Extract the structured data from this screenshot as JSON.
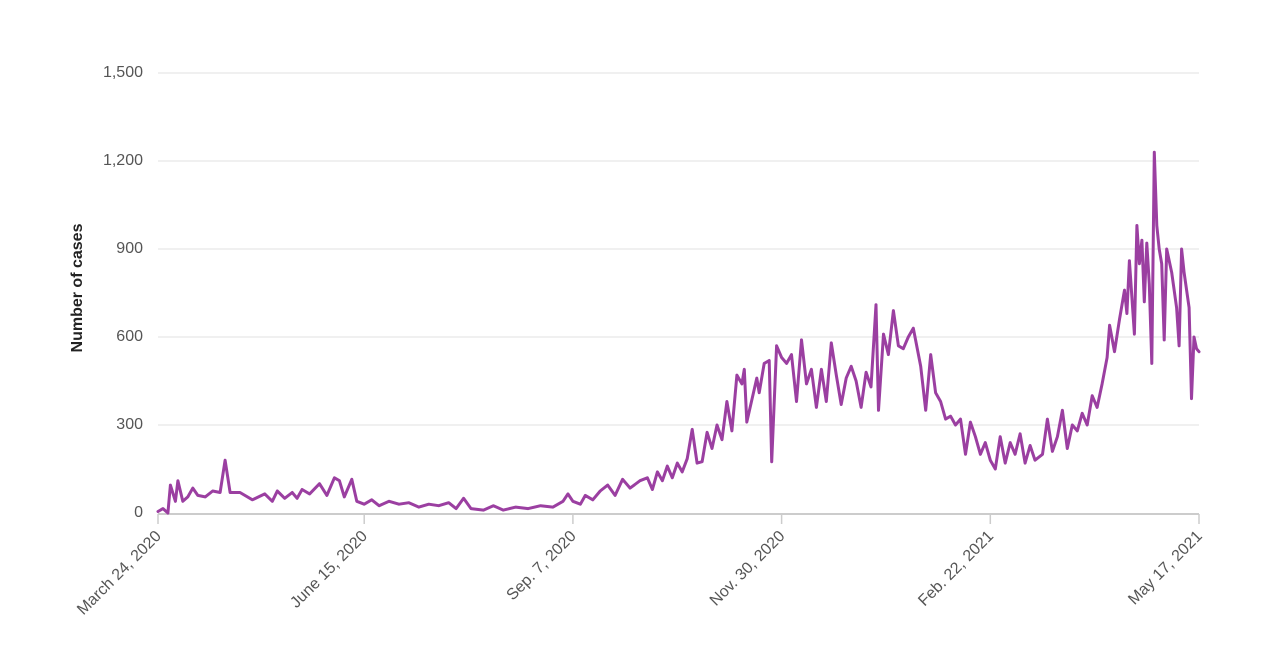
{
  "chart_data": {
    "type": "line",
    "title": "",
    "xlabel": "",
    "ylabel": "Number of cases",
    "ylim": [
      0,
      1500
    ],
    "x_range": [
      "2020-03-24",
      "2021-05-17"
    ],
    "y_ticks": [
      "0",
      "300",
      "600",
      "900",
      "1,200",
      "1,500"
    ],
    "x_ticks": [
      {
        "date": "2020-03-24",
        "label": "March 24, 2020"
      },
      {
        "date": "2020-06-15",
        "label": "June 15, 2020"
      },
      {
        "date": "2020-09-07",
        "label": "Sep. 7, 2020"
      },
      {
        "date": "2020-11-30",
        "label": "Nov. 30, 2020"
      },
      {
        "date": "2021-02-22",
        "label": "Feb. 22, 2021"
      },
      {
        "date": "2021-05-17",
        "label": "May 17, 2021"
      }
    ],
    "grid": true,
    "line_color": "#9b3fa1",
    "series": [
      {
        "points": [
          [
            "2020-03-24",
            5
          ],
          [
            "2020-03-26",
            15
          ],
          [
            "2020-03-28",
            0
          ],
          [
            "2020-03-29",
            95
          ],
          [
            "2020-03-31",
            40
          ],
          [
            "2020-04-01",
            110
          ],
          [
            "2020-04-03",
            40
          ],
          [
            "2020-04-05",
            55
          ],
          [
            "2020-04-07",
            85
          ],
          [
            "2020-04-09",
            60
          ],
          [
            "2020-04-12",
            55
          ],
          [
            "2020-04-15",
            75
          ],
          [
            "2020-04-18",
            70
          ],
          [
            "2020-04-20",
            180
          ],
          [
            "2020-04-22",
            70
          ],
          [
            "2020-04-26",
            70
          ],
          [
            "2020-05-01",
            45
          ],
          [
            "2020-05-06",
            65
          ],
          [
            "2020-05-09",
            40
          ],
          [
            "2020-05-11",
            75
          ],
          [
            "2020-05-14",
            50
          ],
          [
            "2020-05-17",
            70
          ],
          [
            "2020-05-19",
            50
          ],
          [
            "2020-05-21",
            80
          ],
          [
            "2020-05-24",
            65
          ],
          [
            "2020-05-28",
            100
          ],
          [
            "2020-05-31",
            60
          ],
          [
            "2020-06-03",
            120
          ],
          [
            "2020-06-05",
            110
          ],
          [
            "2020-06-07",
            55
          ],
          [
            "2020-06-10",
            115
          ],
          [
            "2020-06-12",
            40
          ],
          [
            "2020-06-15",
            30
          ],
          [
            "2020-06-18",
            45
          ],
          [
            "2020-06-21",
            25
          ],
          [
            "2020-06-25",
            40
          ],
          [
            "2020-06-29",
            30
          ],
          [
            "2020-07-03",
            35
          ],
          [
            "2020-07-07",
            20
          ],
          [
            "2020-07-11",
            30
          ],
          [
            "2020-07-15",
            25
          ],
          [
            "2020-07-19",
            35
          ],
          [
            "2020-07-22",
            15
          ],
          [
            "2020-07-25",
            50
          ],
          [
            "2020-07-28",
            15
          ],
          [
            "2020-08-02",
            10
          ],
          [
            "2020-08-06",
            25
          ],
          [
            "2020-08-10",
            10
          ],
          [
            "2020-08-15",
            20
          ],
          [
            "2020-08-20",
            15
          ],
          [
            "2020-08-25",
            25
          ],
          [
            "2020-08-30",
            20
          ],
          [
            "2020-09-03",
            40
          ],
          [
            "2020-09-05",
            65
          ],
          [
            "2020-09-07",
            40
          ],
          [
            "2020-09-10",
            30
          ],
          [
            "2020-09-12",
            60
          ],
          [
            "2020-09-15",
            45
          ],
          [
            "2020-09-18",
            75
          ],
          [
            "2020-09-21",
            95
          ],
          [
            "2020-09-24",
            60
          ],
          [
            "2020-09-27",
            115
          ],
          [
            "2020-09-30",
            85
          ],
          [
            "2020-10-04",
            110
          ],
          [
            "2020-10-07",
            120
          ],
          [
            "2020-10-09",
            80
          ],
          [
            "2020-10-11",
            140
          ],
          [
            "2020-10-13",
            110
          ],
          [
            "2020-10-15",
            160
          ],
          [
            "2020-10-17",
            120
          ],
          [
            "2020-10-19",
            170
          ],
          [
            "2020-10-21",
            140
          ],
          [
            "2020-10-23",
            185
          ],
          [
            "2020-10-25",
            285
          ],
          [
            "2020-10-27",
            170
          ],
          [
            "2020-10-29",
            175
          ],
          [
            "2020-10-31",
            275
          ],
          [
            "2020-11-02",
            220
          ],
          [
            "2020-11-04",
            300
          ],
          [
            "2020-11-06",
            250
          ],
          [
            "2020-11-08",
            380
          ],
          [
            "2020-11-10",
            280
          ],
          [
            "2020-11-12",
            470
          ],
          [
            "2020-11-14",
            440
          ],
          [
            "2020-11-15",
            490
          ],
          [
            "2020-11-16",
            310
          ],
          [
            "2020-11-18",
            385
          ],
          [
            "2020-11-20",
            460
          ],
          [
            "2020-11-21",
            410
          ],
          [
            "2020-11-23",
            510
          ],
          [
            "2020-11-25",
            520
          ],
          [
            "2020-11-26",
            175
          ],
          [
            "2020-11-28",
            570
          ],
          [
            "2020-11-30",
            530
          ],
          [
            "2020-12-02",
            510
          ],
          [
            "2020-12-04",
            540
          ],
          [
            "2020-12-06",
            380
          ],
          [
            "2020-12-08",
            590
          ],
          [
            "2020-12-10",
            440
          ],
          [
            "2020-12-12",
            490
          ],
          [
            "2020-12-14",
            360
          ],
          [
            "2020-12-16",
            490
          ],
          [
            "2020-12-18",
            380
          ],
          [
            "2020-12-20",
            580
          ],
          [
            "2020-12-22",
            470
          ],
          [
            "2020-12-24",
            370
          ],
          [
            "2020-12-26",
            460
          ],
          [
            "2020-12-28",
            500
          ],
          [
            "2020-12-30",
            450
          ],
          [
            "2021-01-01",
            360
          ],
          [
            "2021-01-03",
            480
          ],
          [
            "2021-01-05",
            430
          ],
          [
            "2021-01-07",
            710
          ],
          [
            "2021-01-08",
            350
          ],
          [
            "2021-01-10",
            610
          ],
          [
            "2021-01-12",
            540
          ],
          [
            "2021-01-14",
            690
          ],
          [
            "2021-01-16",
            570
          ],
          [
            "2021-01-18",
            560
          ],
          [
            "2021-01-20",
            600
          ],
          [
            "2021-01-22",
            630
          ],
          [
            "2021-01-25",
            500
          ],
          [
            "2021-01-27",
            350
          ],
          [
            "2021-01-29",
            540
          ],
          [
            "2021-01-31",
            410
          ],
          [
            "2021-02-02",
            380
          ],
          [
            "2021-02-04",
            320
          ],
          [
            "2021-02-06",
            330
          ],
          [
            "2021-02-08",
            300
          ],
          [
            "2021-02-10",
            320
          ],
          [
            "2021-02-12",
            200
          ],
          [
            "2021-02-14",
            310
          ],
          [
            "2021-02-16",
            260
          ],
          [
            "2021-02-18",
            200
          ],
          [
            "2021-02-20",
            240
          ],
          [
            "2021-02-22",
            180
          ],
          [
            "2021-02-24",
            150
          ],
          [
            "2021-02-26",
            260
          ],
          [
            "2021-02-28",
            170
          ],
          [
            "2021-03-02",
            240
          ],
          [
            "2021-03-04",
            200
          ],
          [
            "2021-03-06",
            270
          ],
          [
            "2021-03-08",
            170
          ],
          [
            "2021-03-10",
            230
          ],
          [
            "2021-03-12",
            180
          ],
          [
            "2021-03-15",
            200
          ],
          [
            "2021-03-17",
            320
          ],
          [
            "2021-03-19",
            210
          ],
          [
            "2021-03-21",
            260
          ],
          [
            "2021-03-23",
            350
          ],
          [
            "2021-03-25",
            220
          ],
          [
            "2021-03-27",
            300
          ],
          [
            "2021-03-29",
            280
          ],
          [
            "2021-03-31",
            340
          ],
          [
            "2021-04-02",
            300
          ],
          [
            "2021-04-04",
            400
          ],
          [
            "2021-04-06",
            360
          ],
          [
            "2021-04-08",
            440
          ],
          [
            "2021-04-10",
            530
          ],
          [
            "2021-04-11",
            640
          ],
          [
            "2021-04-13",
            550
          ],
          [
            "2021-04-15",
            660
          ],
          [
            "2021-04-17",
            760
          ],
          [
            "2021-04-18",
            680
          ],
          [
            "2021-04-19",
            860
          ],
          [
            "2021-04-21",
            610
          ],
          [
            "2021-04-22",
            980
          ],
          [
            "2021-04-23",
            850
          ],
          [
            "2021-04-24",
            930
          ],
          [
            "2021-04-25",
            720
          ],
          [
            "2021-04-26",
            920
          ],
          [
            "2021-04-27",
            780
          ],
          [
            "2021-04-28",
            510
          ],
          [
            "2021-04-29",
            1230
          ],
          [
            "2021-04-30",
            980
          ],
          [
            "2021-05-01",
            900
          ],
          [
            "2021-05-02",
            850
          ],
          [
            "2021-05-03",
            590
          ],
          [
            "2021-05-04",
            900
          ],
          [
            "2021-05-06",
            820
          ],
          [
            "2021-05-08",
            700
          ],
          [
            "2021-05-09",
            570
          ],
          [
            "2021-05-10",
            900
          ],
          [
            "2021-05-11",
            820
          ],
          [
            "2021-05-13",
            700
          ],
          [
            "2021-05-14",
            390
          ],
          [
            "2021-05-15",
            600
          ],
          [
            "2021-05-16",
            560
          ],
          [
            "2021-05-17",
            550
          ]
        ]
      }
    ]
  }
}
